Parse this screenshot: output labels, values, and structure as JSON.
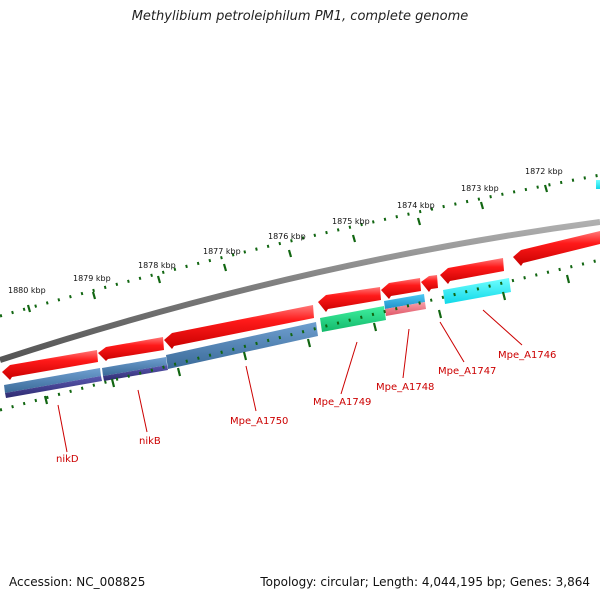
{
  "title": "Methylibium petroleiphilum PM1, complete genome",
  "footer": {
    "accession": "Accession: NC_008825",
    "summary": "Topology: circular; Length: 4,044,195 bp; Genes: 3,864"
  },
  "scale": {
    "unit": "kbp",
    "ticks": [
      {
        "kbp": 1880,
        "label": "1880 kbp"
      },
      {
        "kbp": 1879,
        "label": "1879 kbp"
      },
      {
        "kbp": 1878,
        "label": "1878 kbp"
      },
      {
        "kbp": 1877,
        "label": "1877 kbp"
      },
      {
        "kbp": 1876,
        "label": "1876 kbp"
      },
      {
        "kbp": 1875,
        "label": "1875 kbp"
      },
      {
        "kbp": 1874,
        "label": "1874 kbp"
      },
      {
        "kbp": 1873,
        "label": "1873 kbp"
      },
      {
        "kbp": 1872,
        "label": "1872 kbp"
      }
    ]
  },
  "colors": {
    "cds": "#ee1111",
    "backbone": "#808080",
    "scale_ticks": "#116611",
    "label": "#cc0000",
    "steelblue": "#4a7fb0",
    "navy": "#3d3a8a",
    "mint": "#22e08a",
    "sky": "#2aaee0",
    "pink": "#f07a8a",
    "cyan": "#22f0f0"
  },
  "genes": [
    {
      "name": "nikD"
    },
    {
      "name": "nikB"
    },
    {
      "name": "Mpe_A1750"
    },
    {
      "name": "Mpe_A1749"
    },
    {
      "name": "Mpe_A1748"
    },
    {
      "name": "Mpe_A1747"
    },
    {
      "name": "Mpe_A1746"
    }
  ]
}
